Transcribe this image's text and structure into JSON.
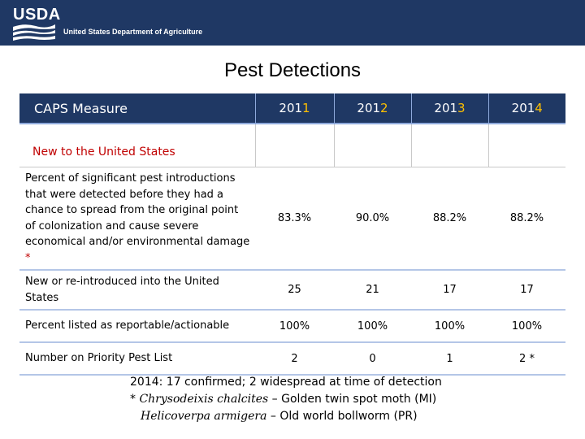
{
  "brand": {
    "acronym": "USDA",
    "department": "United States Department of Agriculture"
  },
  "title": "Pest Detections",
  "table": {
    "measure_header": "CAPS Measure",
    "years": [
      {
        "prefix": "201",
        "suffix": "1"
      },
      {
        "prefix": "201",
        "suffix": "2"
      },
      {
        "prefix": "201",
        "suffix": "3"
      },
      {
        "prefix": "201",
        "suffix": "4"
      }
    ],
    "section_label": "New to the United States",
    "rows": [
      {
        "label": "Percent of significant pest introductions that were detected before they had a chance to spread from the original point of colonization and cause severe economical and/or environmental damage",
        "marker": "*",
        "values": [
          "83.3%",
          "90.0%",
          "88.2%",
          "88.2%"
        ]
      },
      {
        "label": "New or re-introduced into the United States",
        "values": [
          "25",
          "21",
          "17",
          "17"
        ]
      },
      {
        "label": "Percent listed as reportable/actionable",
        "values": [
          "100%",
          "100%",
          "100%",
          "100%"
        ]
      },
      {
        "label": "Number on Priority Pest List",
        "values": [
          "2",
          "0",
          "1",
          "2 *"
        ]
      }
    ]
  },
  "notes": {
    "line1": "2014:  17 confirmed; 2 widespread at time of detection",
    "line2_prefix": "* ",
    "line2_species": "Chrysodeixis chalcites",
    "line2_rest": " – Golden twin spot moth (MI)",
    "line3_species": "Helicoverpa armigera",
    "line3_rest": " – Old world bollworm (PR)"
  },
  "colors": {
    "header_bg": "#1f3864",
    "year_highlight": "#ffc000",
    "section_text": "#c00000"
  }
}
